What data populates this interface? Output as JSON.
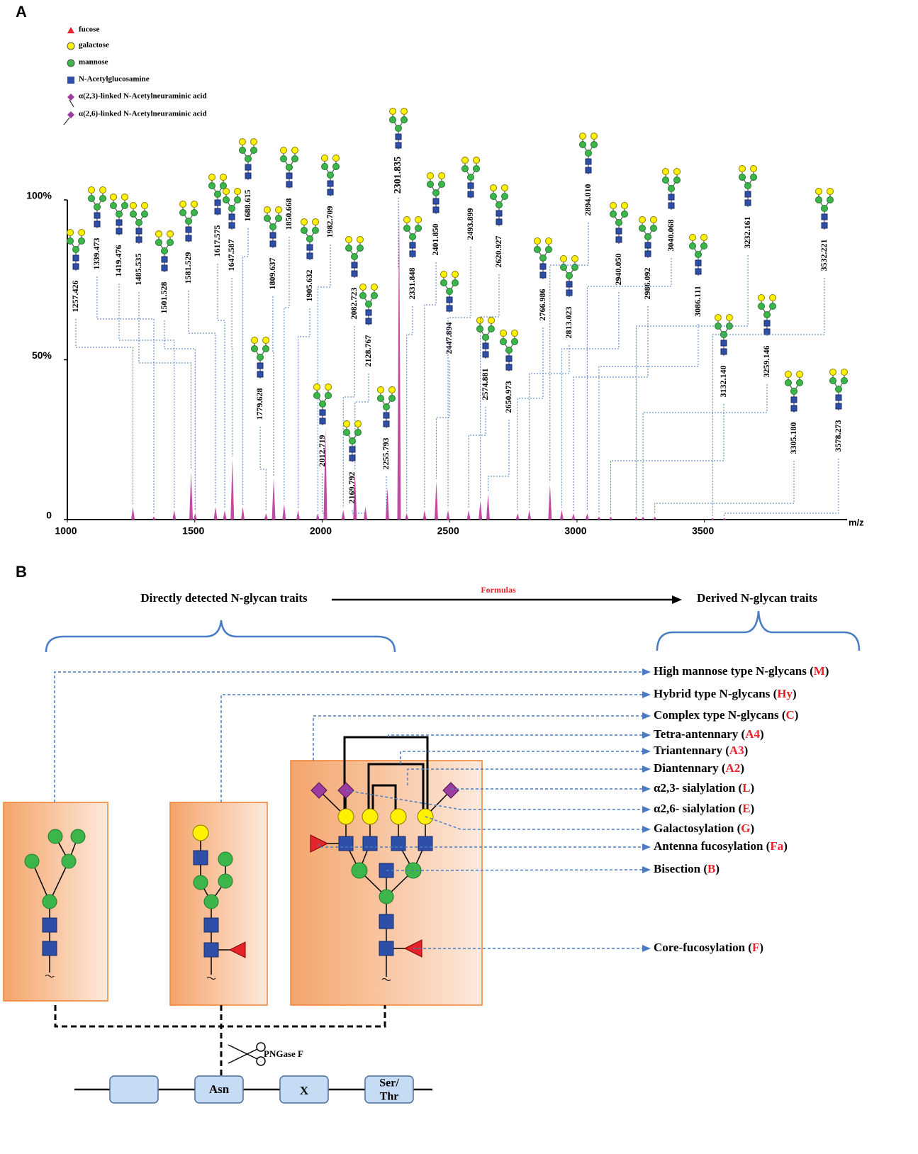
{
  "panels": [
    "A",
    "B"
  ],
  "chart_data": {
    "type": "spectrum",
    "legend_items": [
      {
        "name": "fucose",
        "color": "#e5232b",
        "shape": "triangle"
      },
      {
        "name": "galactose",
        "color": "#fff200",
        "shape": "circle"
      },
      {
        "name": "mannose",
        "color": "#3cb54a",
        "shape": "circle"
      },
      {
        "name": "N-Acetylglucosamine",
        "color": "#2e4fa8",
        "shape": "square"
      },
      {
        "name": "α(2,3)-linked N-Acetylneuraminic acid",
        "color": "#9b3c9e",
        "shape": "diamond-left"
      },
      {
        "name": "α(2,6)-linked N-Acetylneuraminic acid",
        "color": "#9b3c9e",
        "shape": "diamond-right"
      }
    ],
    "x": [
      1257.426,
      1339.473,
      1419.476,
      1485.535,
      1501.528,
      1581.529,
      1617.575,
      1647.587,
      1688.615,
      1779.628,
      1809.637,
      1850.668,
      1905.632,
      1982.709,
      2012.719,
      2082.723,
      2128.767,
      2169.792,
      2255.793,
      2301.835,
      2331.848,
      2401.85,
      2447.894,
      2493.899,
      2574.881,
      2620.927,
      2650.973,
      2766.986,
      2813.023,
      2894.01,
      2940.05,
      2986.092,
      3040.068,
      3086.111,
      3132.14,
      3232.161,
      3259.146,
      3305.18,
      3532.221,
      3578.273
    ],
    "labels": [
      "1257.426",
      "1339.473",
      "1419.476",
      "1485.535",
      "1501.528",
      "1581.529",
      "1617.575",
      "1647.587",
      "1688.615",
      "1779.628",
      "1809.637",
      "1850.668",
      "1905.632",
      "1982.709",
      "2012.719",
      "2082.723",
      "2128.767",
      "2169.792",
      "2255.793",
      "2301.835",
      "2331.848",
      "2401.850",
      "2447.894",
      "2493.899",
      "2574.881",
      "2620.927",
      "2650.973",
      "2766.986",
      "2813.023",
      "2894.010",
      "2940.050",
      "2986.092",
      "3040.068",
      "3086.111",
      "3132.140",
      "3232.161",
      "3259.146",
      "3305.180",
      "3532.221",
      "3578.273"
    ],
    "values": [
      4,
      1,
      3,
      15,
      2,
      4,
      3,
      19,
      4,
      2,
      13,
      5,
      3,
      2,
      29,
      3,
      15,
      4,
      10,
      100,
      2,
      3,
      12,
      3,
      3,
      6,
      8,
      2,
      3,
      11,
      3,
      2,
      2,
      1,
      1,
      1,
      1,
      1,
      0.5,
      0.5
    ],
    "color": "#c04aa4",
    "xlabel": "m/z",
    "xlim": [
      1000,
      4060
    ],
    "xticks": [
      1000,
      1500,
      2000,
      2500,
      3000,
      3500
    ],
    "ylim": [
      0,
      100
    ],
    "yticks": [
      0,
      {
        "value": 50,
        "label": "50%"
      },
      {
        "value": 100,
        "label": "100%"
      }
    ]
  },
  "diagram": {
    "left_heading": "Directly detected N-glycan traits",
    "arrow_label": "Formulas",
    "right_heading": "Derived N-glycan traits",
    "traits": [
      "High mannose type N-glycans (M)",
      "Hybrid type N-glycans (Hy)",
      "Complex type N-glycans (C)",
      "Tetra-antennary (A4)",
      "Triantennary (A3)",
      "Diantennary (A2)",
      "α2,3- sialylation (L)",
      "α2,6- sialylation (E)",
      "Galactosylation (G)",
      "Antenna fucosylation (Fa)",
      "Bisection (B)",
      "Core-fucosylation (F)"
    ],
    "enzyme": "PNGase F",
    "peptide": [
      "Asn",
      "X",
      [
        "Ser/",
        "Thr"
      ]
    ]
  }
}
